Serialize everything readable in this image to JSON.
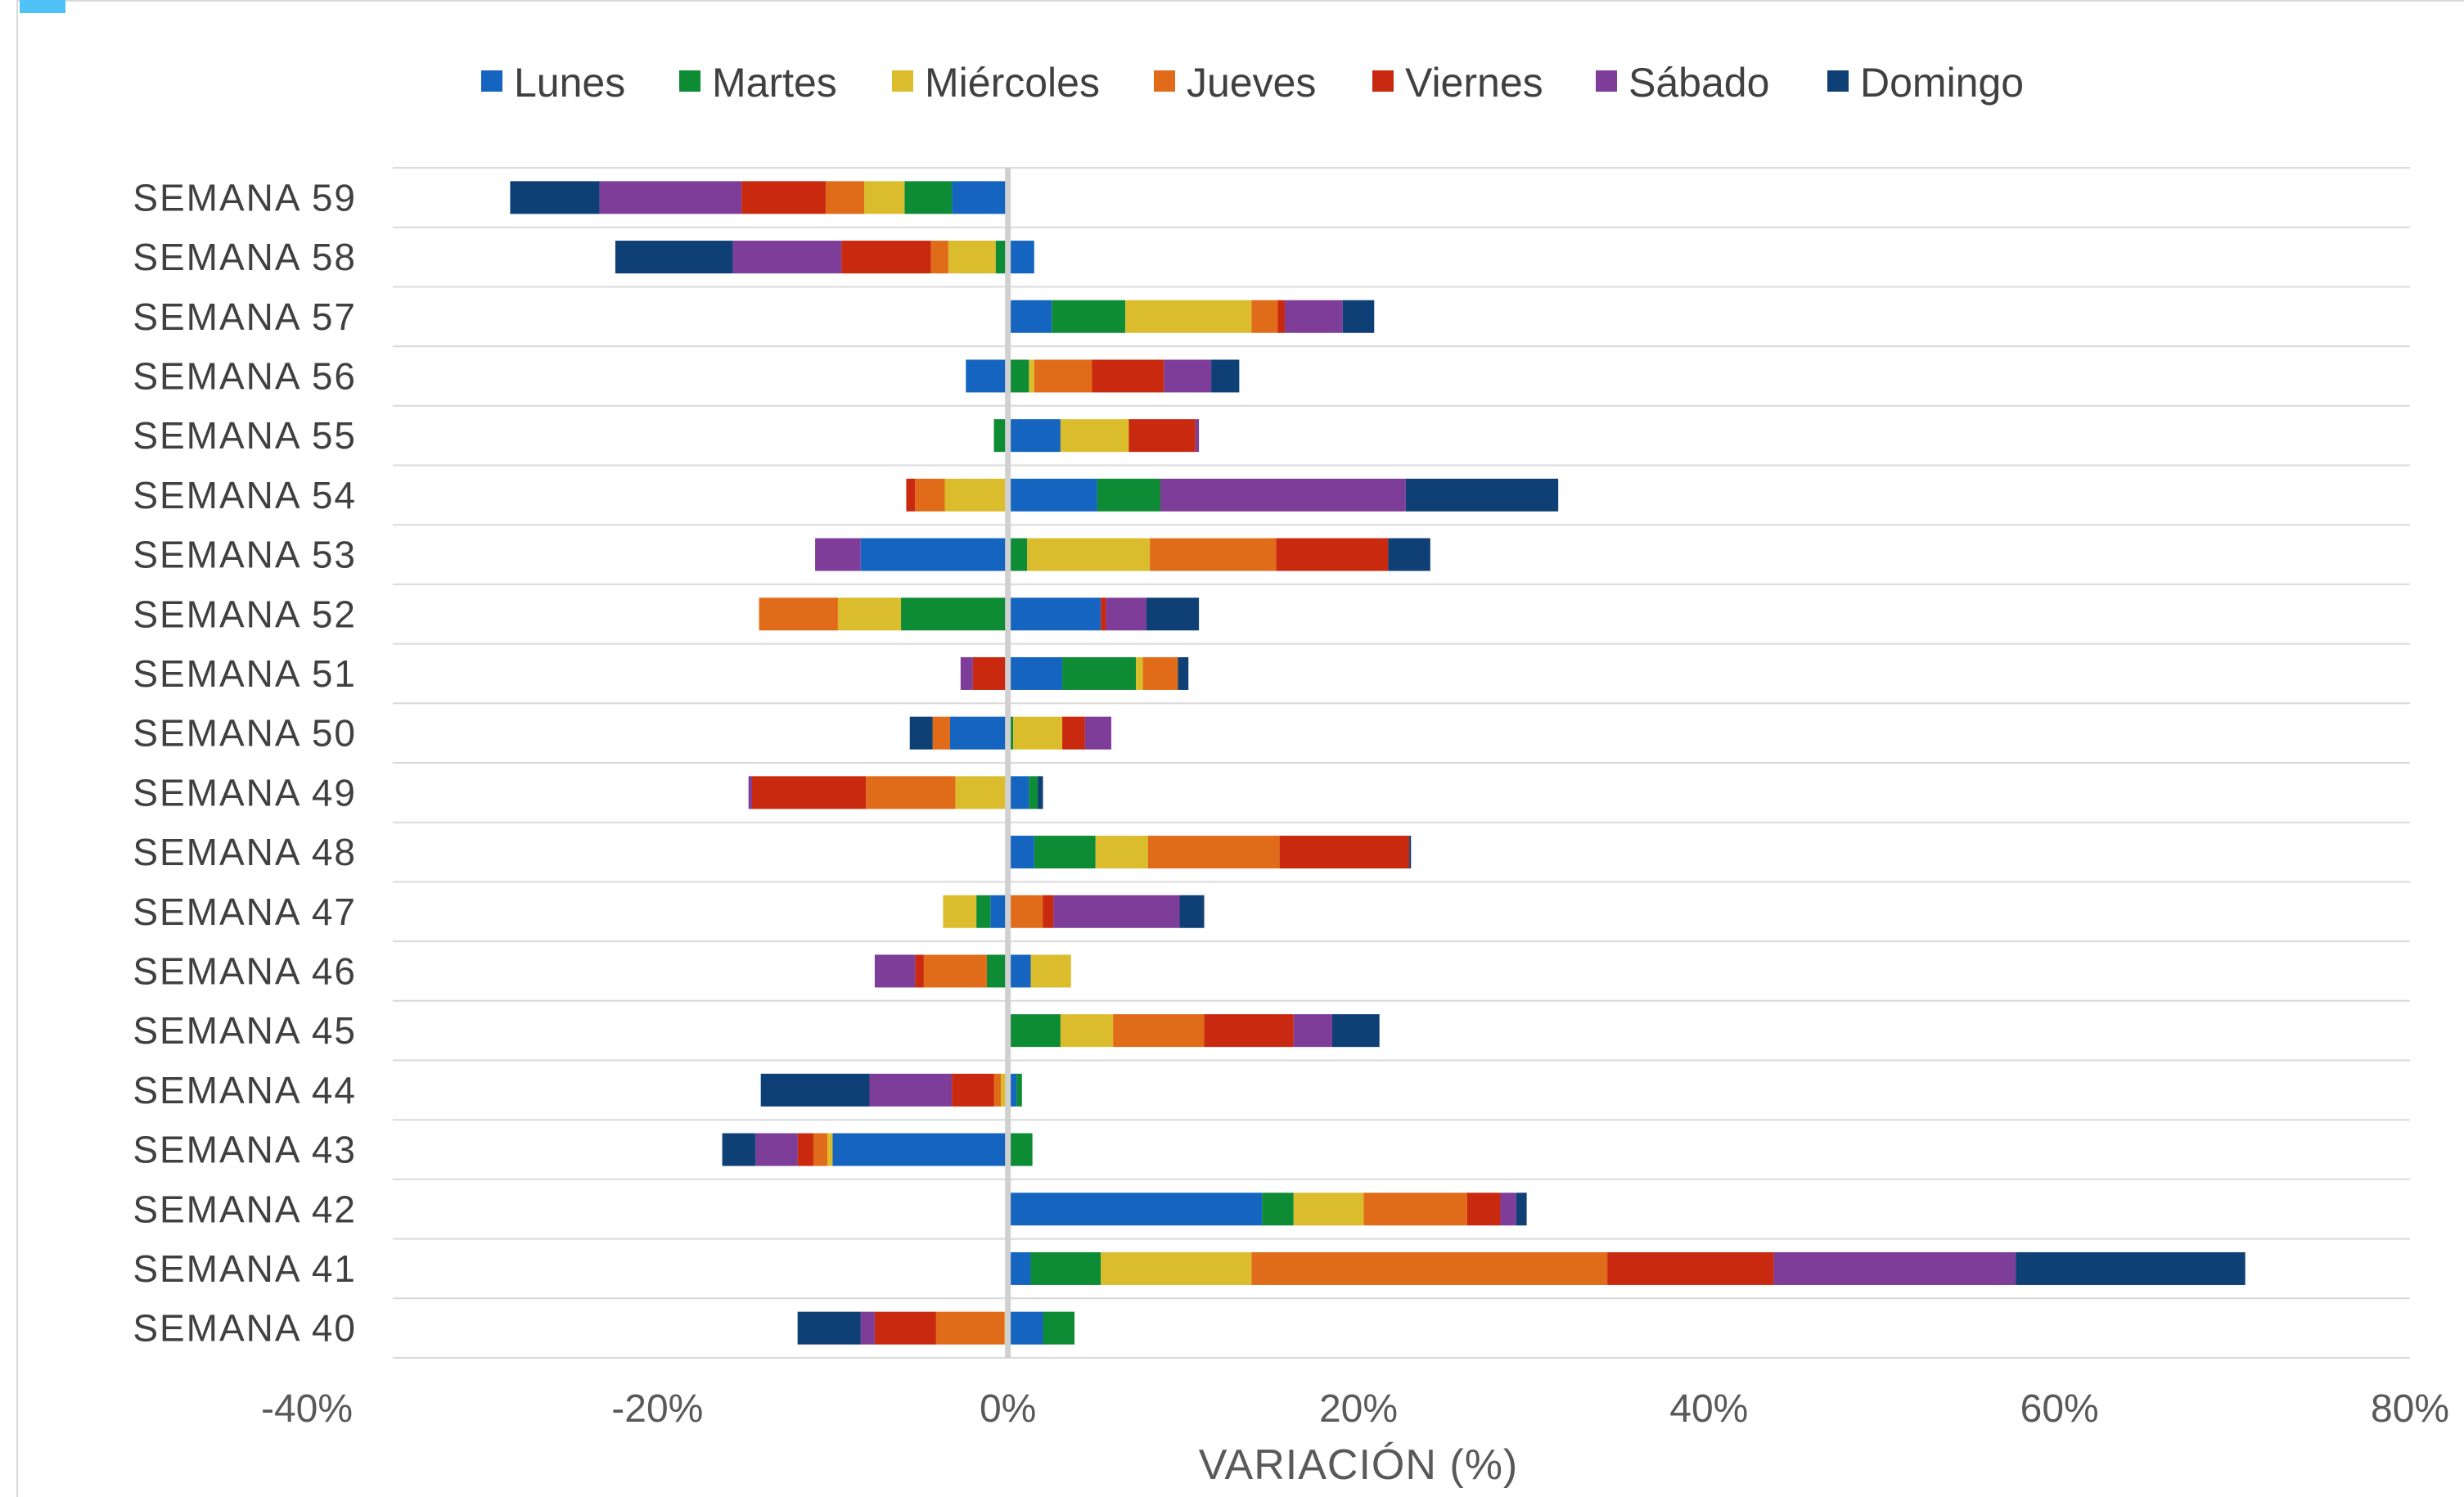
{
  "chart_data": {
    "type": "bar",
    "orientation": "horizontal",
    "stacked": true,
    "xlabel": "VARIACIÓN (%)",
    "xlim": [
      -40,
      80
    ],
    "xticks": [
      "-40%",
      "-20%",
      "0%",
      "20%",
      "40%",
      "60%",
      "80%"
    ],
    "legend_position": "top",
    "grid": "horizontal",
    "categories": [
      "SEMANA 59",
      "SEMANA 58",
      "SEMANA 57",
      "SEMANA 56",
      "SEMANA 55",
      "SEMANA 54",
      "SEMANA 53",
      "SEMANA 52",
      "SEMANA 51",
      "SEMANA 50",
      "SEMANA 49",
      "SEMANA 48",
      "SEMANA 47",
      "SEMANA 46",
      "SEMANA 45",
      "SEMANA 44",
      "SEMANA 43",
      "SEMANA 42",
      "SEMANA 41",
      "SEMANA 40"
    ],
    "series": [
      {
        "name": "Lunes",
        "color": "#1565c0",
        "values": [
          -3.2,
          1.5,
          2.5,
          -2.4,
          3.0,
          5.1,
          -8.4,
          5.3,
          3.1,
          -3.3,
          1.2,
          1.5,
          -1.0,
          1.3,
          0,
          0.5,
          -10.0,
          14.5,
          1.3,
          2.0
        ]
      },
      {
        "name": "Martes",
        "color": "#0e8c35",
        "values": [
          -2.7,
          -0.7,
          4.2,
          1.2,
          -0.8,
          3.6,
          1.1,
          -6.1,
          4.2,
          0.3,
          0.5,
          3.5,
          -0.8,
          -1.2,
          3.0,
          0.3,
          1.4,
          1.8,
          4.0,
          1.8
        ]
      },
      {
        "name": "Miércoles",
        "color": "#dbbc2c",
        "values": [
          -2.3,
          -2.7,
          7.2,
          0.3,
          3.9,
          -3.6,
          7.0,
          -3.6,
          0.4,
          2.8,
          -3.0,
          3.0,
          -1.9,
          2.3,
          3.0,
          -0.4,
          -0.3,
          4.0,
          8.6,
          -0.2
        ]
      },
      {
        "name": "Jueves",
        "color": "#e06c1a",
        "values": [
          -2.2,
          -1.0,
          1.5,
          3.3,
          0,
          -1.7,
          7.2,
          -4.5,
          2.0,
          -1.0,
          -5.1,
          7.5,
          2.0,
          -3.6,
          5.2,
          -0.4,
          -0.8,
          5.9,
          20.3,
          -3.9
        ]
      },
      {
        "name": "Viernes",
        "color": "#c8290f",
        "values": [
          -4.8,
          -5.1,
          0.4,
          4.1,
          3.8,
          -0.5,
          6.4,
          0.3,
          -2.0,
          1.3,
          -6.5,
          7.4,
          0.6,
          -0.5,
          5.1,
          -2.4,
          -0.9,
          1.9,
          9.5,
          -3.5
        ]
      },
      {
        "name": "Sábado",
        "color": "#7e3d98",
        "values": [
          -8.1,
          -6.2,
          3.3,
          2.7,
          0.2,
          14.0,
          -2.6,
          2.3,
          -0.7,
          1.5,
          -0.2,
          0,
          7.2,
          -2.3,
          2.2,
          -4.7,
          -2.4,
          0.9,
          13.8,
          -0.8
        ]
      },
      {
        "name": "Domingo",
        "color": "#0e3f75",
        "values": [
          -5.1,
          -6.7,
          1.8,
          1.6,
          0,
          8.7,
          2.4,
          3.0,
          0.6,
          -1.3,
          0.3,
          0.1,
          1.4,
          0,
          2.7,
          -6.2,
          -1.9,
          0.6,
          13.1,
          -3.6
        ]
      }
    ]
  }
}
